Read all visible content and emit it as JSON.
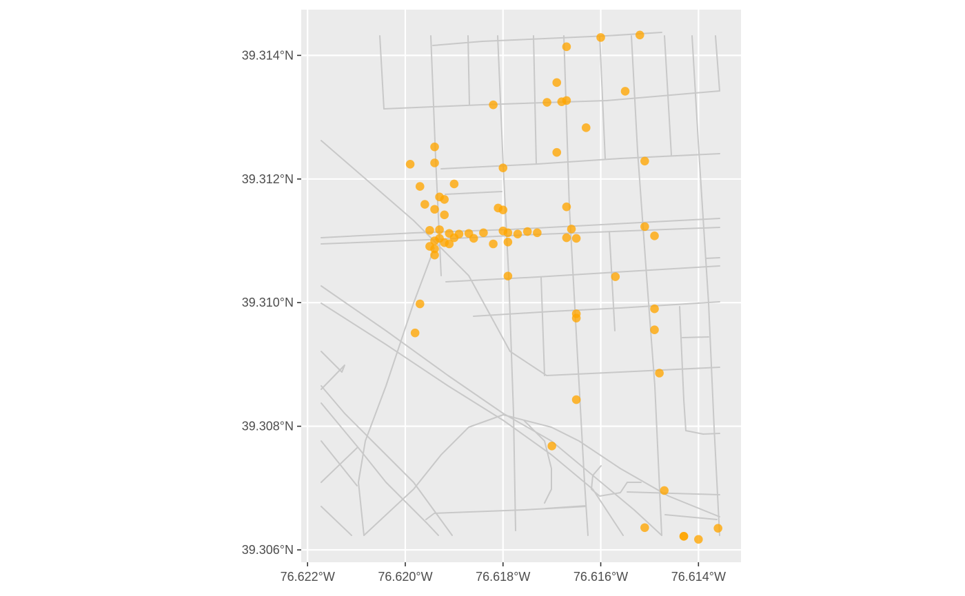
{
  "chart_data": {
    "type": "scatter",
    "title": "",
    "xlabel": "",
    "ylabel": "",
    "xlim": [
      -76.62213,
      -76.61313
    ],
    "ylim": [
      39.3058,
      39.31474
    ],
    "grid": true,
    "x_ticks": [
      {
        "value": -76.622,
        "label": "76.622°W"
      },
      {
        "value": -76.62,
        "label": "76.620°W"
      },
      {
        "value": -76.618,
        "label": "76.618°W"
      },
      {
        "value": -76.616,
        "label": "76.616°W"
      },
      {
        "value": -76.614,
        "label": "76.614°W"
      }
    ],
    "y_ticks": [
      {
        "value": 39.306,
        "label": "39.306°N"
      },
      {
        "value": 39.308,
        "label": "39.308°N"
      },
      {
        "value": 39.31,
        "label": "39.310°N"
      },
      {
        "value": 39.312,
        "label": "39.312°N"
      },
      {
        "value": 39.314,
        "label": "39.314°N"
      }
    ],
    "colors": {
      "panel": "#ebebeb",
      "gridline": "#ffffff",
      "road": "#c8c8c8",
      "point": "#ffa500",
      "axis_text": "#4d4d4d",
      "tick": "#333333"
    },
    "series": [
      {
        "values": [
          [
            -76.6152,
            39.31433
          ],
          [
            -76.616,
            39.31429
          ],
          [
            -76.6167,
            39.31414
          ],
          [
            -76.6155,
            39.31342
          ],
          [
            -76.6169,
            39.31356
          ],
          [
            -76.6182,
            39.3132
          ],
          [
            -76.6171,
            39.31324
          ],
          [
            -76.6168,
            39.31325
          ],
          [
            -76.6167,
            39.31327
          ],
          [
            -76.6163,
            39.31283
          ],
          [
            -76.6169,
            39.31243
          ],
          [
            -76.6194,
            39.31252
          ],
          [
            -76.6194,
            39.31226
          ],
          [
            -76.6199,
            39.31224
          ],
          [
            -76.618,
            39.31218
          ],
          [
            -76.6151,
            39.31229
          ],
          [
            -76.6197,
            39.31188
          ],
          [
            -76.619,
            39.31192
          ],
          [
            -76.6193,
            39.31171
          ],
          [
            -76.6192,
            39.31167
          ],
          [
            -76.6196,
            39.31159
          ],
          [
            -76.6194,
            39.31151
          ],
          [
            -76.6192,
            39.31142
          ],
          [
            -76.6181,
            39.31153
          ],
          [
            -76.618,
            39.3115
          ],
          [
            -76.6167,
            39.31155
          ],
          [
            -76.6195,
            39.31117
          ],
          [
            -76.6193,
            39.31118
          ],
          [
            -76.6191,
            39.31112
          ],
          [
            -76.6189,
            39.31111
          ],
          [
            -76.6187,
            39.31112
          ],
          [
            -76.6184,
            39.31113
          ],
          [
            -76.618,
            39.31116
          ],
          [
            -76.6179,
            39.31113
          ],
          [
            -76.6177,
            39.31111
          ],
          [
            -76.6175,
            39.31115
          ],
          [
            -76.6173,
            39.31113
          ],
          [
            -76.6166,
            39.31119
          ],
          [
            -76.6151,
            39.31123
          ],
          [
            -76.6149,
            39.31108
          ],
          [
            -76.6194,
            39.311
          ],
          [
            -76.6193,
            39.31104
          ],
          [
            -76.6192,
            39.31097
          ],
          [
            -76.6191,
            39.31095
          ],
          [
            -76.619,
            39.31105
          ],
          [
            -76.6186,
            39.31104
          ],
          [
            -76.6182,
            39.31095
          ],
          [
            -76.6179,
            39.31098
          ],
          [
            -76.6167,
            39.31105
          ],
          [
            -76.6165,
            39.31104
          ],
          [
            -76.6195,
            39.31091
          ],
          [
            -76.6194,
            39.31087
          ],
          [
            -76.6194,
            39.31077
          ],
          [
            -76.6179,
            39.31043
          ],
          [
            -76.6157,
            39.31042
          ],
          [
            -76.6197,
            39.30998
          ],
          [
            -76.6149,
            39.3099
          ],
          [
            -76.6165,
            39.30982
          ],
          [
            -76.6165,
            39.30975
          ],
          [
            -76.6149,
            39.30956
          ],
          [
            -76.6198,
            39.30951
          ],
          [
            -76.6148,
            39.30886
          ],
          [
            -76.6165,
            39.30843
          ],
          [
            -76.617,
            39.30768
          ],
          [
            -76.6147,
            39.30696
          ],
          [
            -76.6151,
            39.30636
          ],
          [
            -76.6143,
            39.30622
          ],
          [
            -76.6143,
            39.30622
          ],
          [
            -76.614,
            39.30617
          ],
          [
            -76.6136,
            39.30635
          ]
        ]
      }
    ]
  }
}
